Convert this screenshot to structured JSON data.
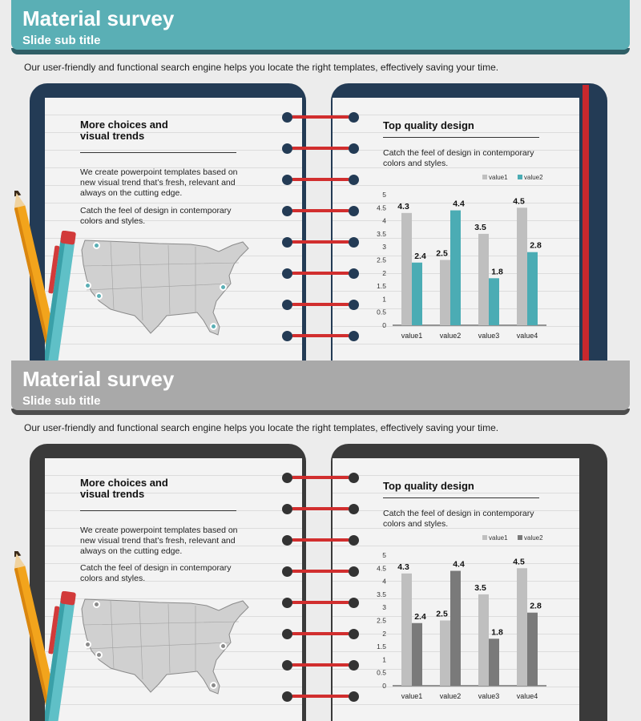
{
  "slides": [
    {
      "title": "Material survey",
      "subtitle": "Slide sub title",
      "intro": "Our user-friendly and functional search engine helps you locate the right templates, effectively saving your time.",
      "left_page": {
        "heading_line1": "More choices and",
        "heading_line2": "visual trends",
        "para1_line1": "We create powerpoint templates based on",
        "para1_line2": "new visual trend that’s fresh, relevant and",
        "para1_line3": "always on the cutting edge.",
        "para2_line1": "Catch the feel of design in contemporary",
        "para2_line2": "colors and styles."
      },
      "right_page": {
        "heading": "Top quality design",
        "text_line1": "Catch the feel of design in contemporary",
        "text_line2": "colors and styles."
      },
      "colors": {
        "accent": "#5aafb5",
        "dark": "#233b55",
        "series1": "#bfbfbf",
        "series2": "#4bacb4",
        "pin": "#5aafb5"
      }
    },
    {
      "title": "Material survey",
      "subtitle": "Slide sub title",
      "intro": "Our user-friendly and functional search engine helps you locate the right templates, effectively saving your time.",
      "left_page": {
        "heading_line1": "More choices and",
        "heading_line2": "visual trends",
        "para1_line1": "We create powerpoint templates based on",
        "para1_line2": "new visual trend that’s fresh, relevant and",
        "para1_line3": "always on the cutting edge.",
        "para2_line1": "Catch the feel of design in contemporary",
        "para2_line2": "colors and styles."
      },
      "right_page": {
        "heading": "Top quality design",
        "text_line1": "Catch the feel of design in contemporary",
        "text_line2": "colors and styles."
      },
      "colors": {
        "accent": "#a9a9a9",
        "dark": "#3a3a3a",
        "series1": "#bfbfbf",
        "series2": "#7a7a7a",
        "pin": "#8a8a8a"
      }
    }
  ],
  "chart_data": [
    {
      "type": "bar",
      "categories": [
        "value1",
        "value2",
        "value3",
        "value4"
      ],
      "series": [
        {
          "name": "value1",
          "values": [
            4.3,
            2.5,
            3.5,
            4.5
          ]
        },
        {
          "name": "value2",
          "values": [
            2.4,
            4.4,
            1.8,
            2.8
          ]
        }
      ],
      "ylim": [
        0,
        5
      ],
      "yticks": [
        "0",
        "0.5",
        "1",
        "1.5",
        "2",
        "2.5",
        "3",
        "3.5",
        "4",
        "4.5",
        "5"
      ],
      "legend": "top-right",
      "grid": false
    },
    {
      "type": "bar",
      "categories": [
        "value1",
        "value2",
        "value3",
        "value4"
      ],
      "series": [
        {
          "name": "value1",
          "values": [
            4.3,
            2.5,
            3.5,
            4.5
          ]
        },
        {
          "name": "value2",
          "values": [
            2.4,
            4.4,
            1.8,
            2.8
          ]
        }
      ],
      "ylim": [
        0,
        5
      ],
      "yticks": [
        "0",
        "0.5",
        "1",
        "1.5",
        "2",
        "2.5",
        "3",
        "3.5",
        "4",
        "4.5",
        "5"
      ],
      "legend": "top-right",
      "grid": false
    }
  ]
}
